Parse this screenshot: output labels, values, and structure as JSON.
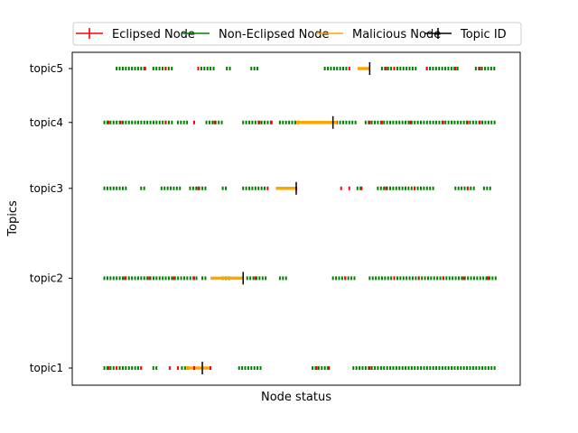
{
  "chart_data": {
    "type": "scatter",
    "xlabel": "Node status",
    "ylabel": "Topics",
    "legend_position": "top",
    "legend": [
      {
        "label": "Eclipsed Node",
        "color": "#ff0000",
        "marker": "+"
      },
      {
        "label": "Non-Eclipsed Node",
        "color": "#008000",
        "marker": "line"
      },
      {
        "label": "Malicious Node",
        "color": "#ffa500",
        "marker": "line"
      },
      {
        "label": "Topic ID",
        "color": "#000000",
        "marker": "|"
      }
    ],
    "x_ticks_visible": false,
    "xlim": [
      0,
      1
    ],
    "topics": [
      {
        "label": "topic1",
        "y": 0.0,
        "green_segments": [
          [
            0.03,
            0.12
          ],
          [
            0.15,
            0.16
          ],
          [
            0.22,
            0.24
          ],
          [
            0.36,
            0.42
          ],
          [
            0.54,
            0.58
          ],
          [
            0.64,
            0.99
          ]
        ],
        "red_points": [
          0.04,
          0.06,
          0.12,
          0.19,
          0.21,
          0.25,
          0.29,
          0.55,
          0.58,
          0.68
        ],
        "malicious_segment": [
          0.23,
          0.29
        ],
        "topic_id": 0.27
      },
      {
        "label": "topic2",
        "y": 0.3,
        "green_segments": [
          [
            0.03,
            0.26
          ],
          [
            0.27,
            0.28
          ],
          [
            0.32,
            0.34
          ],
          [
            0.38,
            0.43
          ],
          [
            0.46,
            0.48
          ],
          [
            0.59,
            0.65
          ],
          [
            0.68,
            0.99
          ]
        ],
        "red_points": [
          0.08,
          0.14,
          0.2,
          0.25,
          0.4,
          0.62,
          0.74,
          0.8,
          0.86,
          0.91,
          0.97
        ],
        "malicious_segment": [
          0.29,
          0.37
        ],
        "topic_id": 0.37
      },
      {
        "label": "topic3",
        "y": 0.6,
        "green_segments": [
          [
            0.03,
            0.09
          ],
          [
            0.12,
            0.13
          ],
          [
            0.17,
            0.22
          ],
          [
            0.24,
            0.28
          ],
          [
            0.32,
            0.33
          ],
          [
            0.37,
            0.43
          ],
          [
            0.65,
            0.66
          ],
          [
            0.7,
            0.84
          ],
          [
            0.89,
            0.94
          ],
          [
            0.96,
            0.98
          ]
        ],
        "red_points": [
          0.26,
          0.43,
          0.5,
          0.61,
          0.63,
          0.66,
          0.72,
          0.79,
          0.92
        ],
        "malicious_segment": [
          0.45,
          0.5
        ],
        "topic_id": 0.5
      },
      {
        "label": "topic4",
        "y": 0.82,
        "green_segments": [
          [
            0.03,
            0.2
          ],
          [
            0.21,
            0.24
          ],
          [
            0.28,
            0.32
          ],
          [
            0.37,
            0.44
          ],
          [
            0.46,
            0.51
          ],
          [
            0.6,
            0.65
          ],
          [
            0.67,
            0.99
          ]
        ],
        "red_points": [
          0.04,
          0.07,
          0.18,
          0.25,
          0.3,
          0.41,
          0.44,
          0.68,
          0.71,
          0.78,
          0.86,
          0.92,
          0.95
        ],
        "malicious_segment": [
          0.5,
          0.6
        ],
        "topic_id": 0.59
      },
      {
        "label": "topic5",
        "y": 1.0,
        "green_segments": [
          [
            0.06,
            0.13
          ],
          [
            0.15,
            0.2
          ],
          [
            0.26,
            0.3
          ],
          [
            0.33,
            0.34
          ],
          [
            0.39,
            0.41
          ],
          [
            0.57,
            0.63
          ],
          [
            0.71,
            0.8
          ],
          [
            0.82,
            0.9
          ],
          [
            0.94,
            0.99
          ]
        ],
        "red_points": [
          0.13,
          0.18,
          0.26,
          0.63,
          0.72,
          0.74,
          0.82,
          0.89,
          0.95
        ],
        "malicious_segment": [
          0.65,
          0.68
        ],
        "topic_id": 0.68
      }
    ]
  }
}
